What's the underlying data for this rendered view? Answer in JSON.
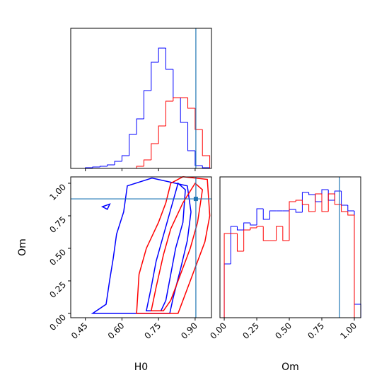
{
  "chart_data": [
    {
      "type": "histogram",
      "xlim": [
        0.39,
        0.967
      ],
      "ylim": [
        0,
        198
      ],
      "xticks": [
        0.45,
        {
          "value": 0.6,
          "label": "0.60"
        },
        0.75,
        {
          "value": 0.9,
          "label": "0.90"
        }
      ],
      "tick_labels": false,
      "bins": [
        0.42,
        0.45,
        0.48,
        0.51,
        0.54,
        0.57,
        0.6,
        0.63,
        0.66,
        0.69,
        0.72,
        0.75,
        0.78,
        0.81,
        0.84,
        0.87,
        0.9,
        0.93,
        0.96
      ],
      "series": [
        {
          "color": "#0000ff",
          "values": [
            0,
            1,
            2,
            3,
            5,
            10,
            18,
            48,
            70,
            110,
            150,
            170,
            140,
            100,
            65,
            25,
            4,
            1
          ]
        },
        {
          "color": "#ff0000",
          "values": [
            0,
            0,
            0,
            0,
            0,
            0,
            0,
            0,
            3,
            12,
            35,
            60,
            95,
            100,
            100,
            85,
            55,
            18
          ]
        }
      ],
      "vline": 0.903,
      "truth_color": "#1f77b4"
    },
    {
      "type": "contour",
      "xlim": [
        0.39,
        0.967
      ],
      "ylim": [
        -0.033,
        1.049
      ],
      "xlabel": "H0",
      "ylabel": "Om",
      "xticks": [
        0.45,
        {
          "value": 0.6,
          "label": "0.60"
        },
        0.75,
        {
          "value": 0.9,
          "label": "0.90"
        }
      ],
      "yticks": [
        {
          "value": 0,
          "label": "0.00"
        },
        0.25,
        {
          "value": 0.5,
          "label": "0.50"
        },
        0.75,
        {
          "value": 1,
          "label": "1.00"
        }
      ],
      "series": [
        {
          "color": "#0000ff",
          "x": [
            0.48,
            0.535,
            0.55,
            0.564,
            0.578,
            0.607,
            0.622,
            0.723,
            0.868,
            0.883,
            0.868,
            0.84,
            0.81,
            0.796
          ],
          "y": [
            0,
            0.07,
            0.26,
            0.42,
            0.61,
            0.78,
            0.98,
            1.04,
            0.98,
            0.78,
            0.56,
            0.34,
            0.12,
            0
          ]
        },
        {
          "color": "#0000ff",
          "x": [
            0.7,
            0.72,
            0.74,
            0.77,
            0.8,
            0.83,
            0.86,
            0.85,
            0.82,
            0.8,
            0.78,
            0.76
          ],
          "y": [
            0.02,
            0.2,
            0.4,
            0.6,
            0.8,
            1.0,
            0.95,
            0.7,
            0.5,
            0.3,
            0.1,
            0.02
          ]
        },
        {
          "color": "#0000ff",
          "x": [
            0.52,
            0.55,
            0.54,
            0.52
          ],
          "y": [
            0.82,
            0.84,
            0.8,
            0.82
          ]
        },
        {
          "color": "#ff0000",
          "x": [
            0.66,
            0.67,
            0.7,
            0.75,
            0.78,
            0.8,
            0.85,
            0.95,
            0.96,
            0.94,
            0.9,
            0.86,
            0.83
          ],
          "y": [
            0,
            0.3,
            0.5,
            0.7,
            0.85,
            1.0,
            1.05,
            1.03,
            0.75,
            0.55,
            0.35,
            0.15,
            0
          ]
        },
        {
          "color": "#ff0000",
          "x": [
            0.72,
            0.74,
            0.77,
            0.8,
            0.85,
            0.9,
            0.93,
            0.91,
            0.88,
            0.84,
            0.8,
            0.77
          ],
          "y": [
            0.02,
            0.2,
            0.45,
            0.65,
            0.85,
            1.0,
            0.95,
            0.7,
            0.5,
            0.3,
            0.1,
            0.02
          ]
        }
      ],
      "vline": 0.903,
      "hline": 0.88,
      "truth_color": "#1f77b4"
    },
    {
      "type": "histogram",
      "xlim": [
        -0.033,
        1.049
      ],
      "ylim": [
        0,
        199
      ],
      "xlabel": "Om",
      "xticks": [
        {
          "value": 0,
          "label": "0.00"
        },
        0.25,
        {
          "value": 0.5,
          "label": "0.50"
        },
        0.75,
        {
          "value": 1,
          "label": "1.00"
        }
      ],
      "bins": [
        0,
        0.05,
        0.1,
        0.15,
        0.2,
        0.25,
        0.3,
        0.35,
        0.4,
        0.45,
        0.5,
        0.55,
        0.6,
        0.65,
        0.7,
        0.75,
        0.8,
        0.85,
        0.9,
        0.95,
        1.0,
        1.05
      ],
      "series": [
        {
          "color": "#0000ff",
          "values": [
            76,
            129,
            124,
            134,
            131,
            154,
            139,
            151,
            151,
            151,
            153,
            149,
            177,
            174,
            164,
            181,
            166,
            179,
            159,
            151,
            19
          ]
        },
        {
          "color": "#ff0000",
          "values": [
            119,
            119,
            94,
            124,
            127,
            129,
            109,
            109,
            129,
            109,
            164,
            166,
            160,
            150,
            175,
            150,
            175,
            160,
            150,
            145,
            0
          ]
        }
      ],
      "vline": 0.886,
      "truth_color": "#1f77b4"
    }
  ]
}
